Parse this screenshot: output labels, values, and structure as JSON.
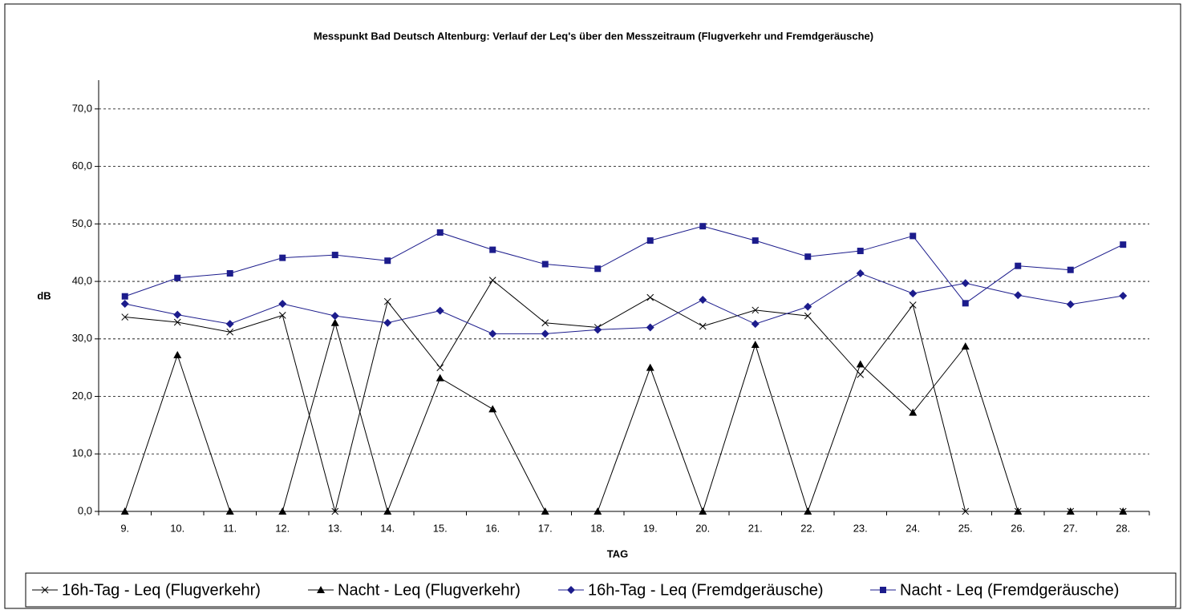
{
  "chart_data": {
    "type": "line",
    "title": "Messpunkt Bad Deutsch Altenburg: Verlauf der Leq's über den Messzeitraum (Flugverkehr und Fremdgeräusche)",
    "x_label": "TAG",
    "y_label": "dB",
    "categories": [
      "9.",
      "10.",
      "11.",
      "12.",
      "13.",
      "14.",
      "15.",
      "16.",
      "17.",
      "18.",
      "19.",
      "20.",
      "21.",
      "22.",
      "23.",
      "24.",
      "25.",
      "26.",
      "27.",
      "28."
    ],
    "series": [
      {
        "name": "16h-Tag - Leq (Flugverkehr)",
        "color": "#000000",
        "marker": "x",
        "values": [
          33.8,
          32.9,
          31.2,
          34.1,
          0,
          36.5,
          25.0,
          40.2,
          32.8,
          32.0,
          37.2,
          32.2,
          35.0,
          34.0,
          23.8,
          35.9,
          0,
          0,
          0,
          0
        ]
      },
      {
        "name": "Nacht - Leq (Flugverkehr)",
        "color": "#000000",
        "marker": "triangle",
        "values": [
          0,
          27.2,
          0,
          0,
          32.8,
          0,
          23.2,
          17.8,
          0,
          0,
          25.0,
          0,
          29.0,
          0,
          25.6,
          17.2,
          28.7,
          0,
          0,
          0
        ]
      },
      {
        "name": "16h-Tag - Leq (Fremdgeräusche)",
        "color": "#1c1c8c",
        "marker": "diamond",
        "values": [
          36.1,
          34.2,
          32.6,
          36.1,
          34.0,
          32.8,
          34.9,
          30.9,
          30.9,
          31.6,
          32.0,
          36.8,
          32.6,
          35.6,
          41.4,
          37.9,
          39.7,
          37.6,
          36.0,
          37.5
        ]
      },
      {
        "name": "Nacht - Leq (Fremdgeräusche)",
        "color": "#1c1c8c",
        "marker": "square",
        "values": [
          37.4,
          40.6,
          41.4,
          44.1,
          44.6,
          43.6,
          48.5,
          45.5,
          43.0,
          42.2,
          47.1,
          49.6,
          47.1,
          44.3,
          45.3,
          47.9,
          36.2,
          42.7,
          42.0,
          46.4
        ]
      }
    ],
    "ylim": [
      0,
      75
    ],
    "yticks": [
      {
        "value": 0,
        "label": "0,0"
      },
      {
        "value": 10,
        "label": "10,0"
      },
      {
        "value": 20,
        "label": "20,0"
      },
      {
        "value": 30,
        "label": "30,0"
      },
      {
        "value": 40,
        "label": "40,0"
      },
      {
        "value": 50,
        "label": "50,0"
      },
      {
        "value": 60,
        "label": "60,0"
      },
      {
        "value": 70,
        "label": "70,0"
      }
    ],
    "grid": true,
    "legend": "bottom"
  }
}
